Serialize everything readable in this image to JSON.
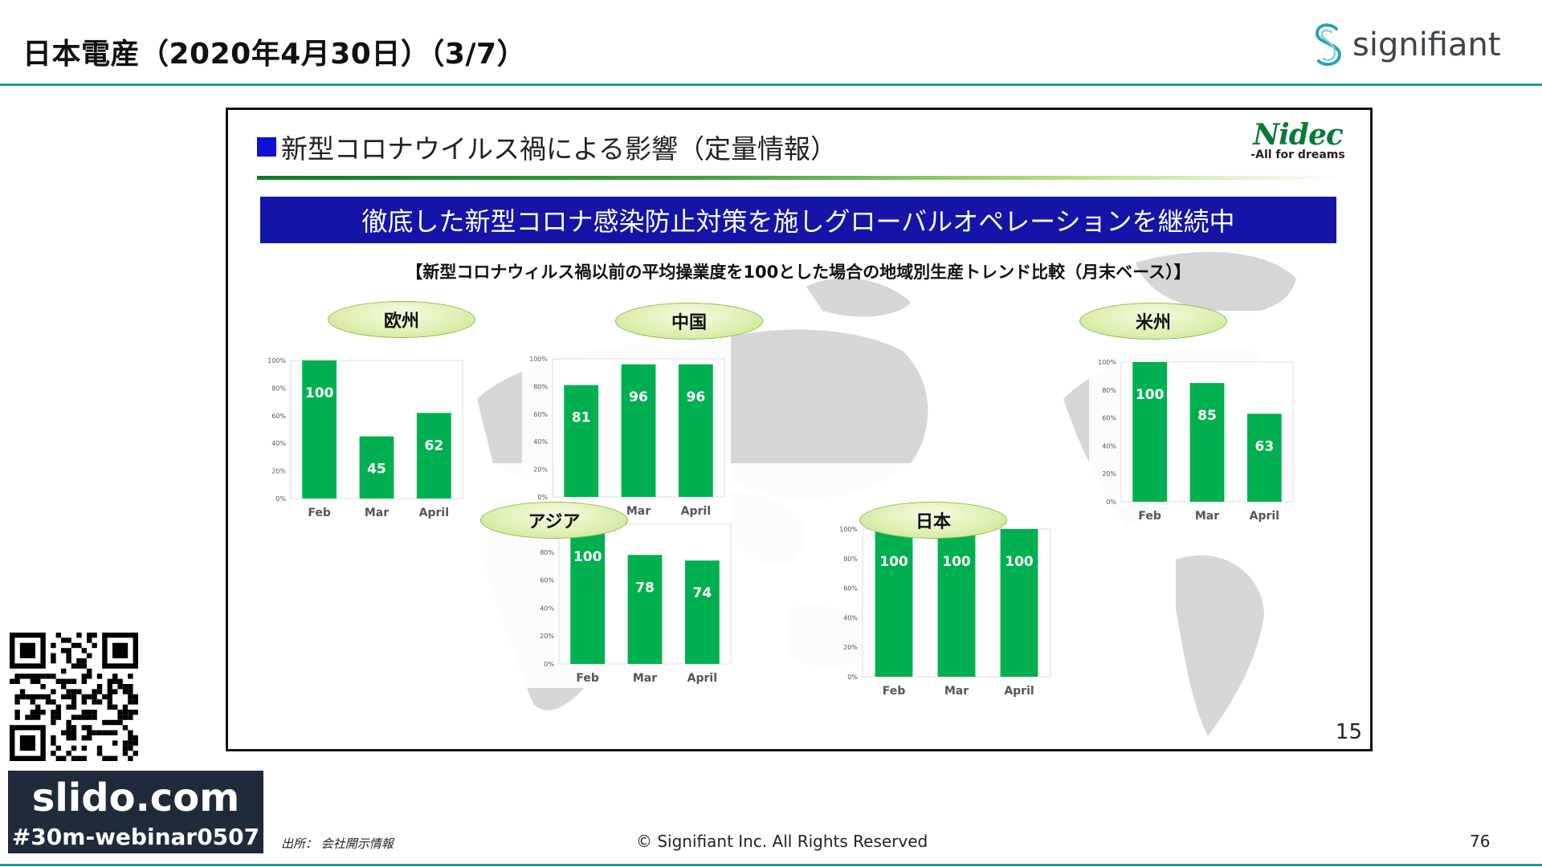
{
  "header": {
    "title": "日本電産（2020年4月30日）（3/7）",
    "brand": "signifiant"
  },
  "slide": {
    "heading": "新型コロナウイルス禍による影響（定量情報）",
    "logo": "Nidec",
    "logo_tagline": "-All for dreams",
    "banner": "徹底した新型コロナ感染防止対策を施しグローバルオペレーションを継続中",
    "subtitle": "【新型コロナウィルス禍以前の平均操業度を100とした場合の地域別生産トレンド比較（月末ベース）】",
    "number": "15"
  },
  "chart_data": [
    {
      "type": "bar",
      "title": "欧州",
      "categories": [
        "Feb",
        "Mar",
        "April"
      ],
      "values": [
        100,
        45,
        62
      ],
      "ylim": [
        0,
        100
      ],
      "yticks": [
        "0%",
        "20%",
        "40%",
        "60%",
        "80%",
        "100%"
      ],
      "bar_color": "#00b050"
    },
    {
      "type": "bar",
      "title": "中国",
      "categories": [
        "Feb",
        "Mar",
        "April"
      ],
      "values": [
        81,
        96,
        96
      ],
      "ylim": [
        0,
        100
      ],
      "yticks": [
        "0%",
        "20%",
        "40%",
        "60%",
        "80%",
        "100%"
      ],
      "bar_color": "#00b050"
    },
    {
      "type": "bar",
      "title": "米州",
      "categories": [
        "Feb",
        "Mar",
        "April"
      ],
      "values": [
        100,
        85,
        63
      ],
      "ylim": [
        0,
        100
      ],
      "yticks": [
        "0%",
        "20%",
        "40%",
        "60%",
        "80%",
        "100%"
      ],
      "bar_color": "#00b050"
    },
    {
      "type": "bar",
      "title": "アジア",
      "categories": [
        "Feb",
        "Mar",
        "April"
      ],
      "values": [
        100,
        78,
        74
      ],
      "ylim": [
        0,
        100
      ],
      "yticks": [
        "0%",
        "20%",
        "40%",
        "60%",
        "80%",
        "100%"
      ],
      "bar_color": "#00b050"
    },
    {
      "type": "bar",
      "title": "日本",
      "categories": [
        "Feb",
        "Mar",
        "April"
      ],
      "values": [
        100,
        100,
        100
      ],
      "ylim": [
        0,
        100
      ],
      "yticks": [
        "0%",
        "20%",
        "40%",
        "60%",
        "80%",
        "100%"
      ],
      "bar_color": "#00b050"
    }
  ],
  "footer": {
    "slido_url": "slido.com",
    "slido_tag": "#30m-webinar0507",
    "source": "出所： 会社開示情報",
    "copyright": "© Signifiant Inc. All Rights Reserved",
    "page": "76"
  },
  "icons": {
    "brand_logo": "signifiant-s-logo-icon",
    "qr": "qr-code-icon",
    "heading_bullet": "blue-square-bullet-icon",
    "background": "world-map-illustration"
  },
  "colors": {
    "accent_rule": "#1e9aa0",
    "banner": "#1414a8",
    "bar": "#00b050",
    "slido_bg": "#1f2a3a"
  }
}
